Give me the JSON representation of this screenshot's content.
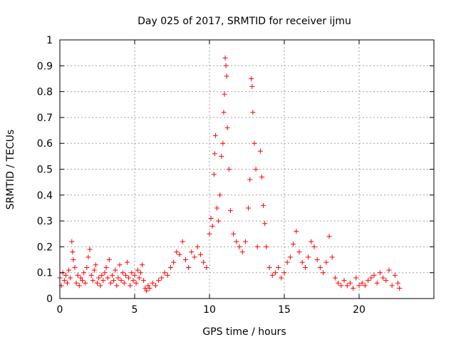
{
  "chart_data": {
    "type": "scatter",
    "title": "Day 025 of 2017, SRMTID for receiver ijmu",
    "xlabel": "GPS time / hours",
    "ylabel": "SRMTID / TECUs",
    "xlim": [
      0,
      25
    ],
    "ylim": [
      0,
      1
    ],
    "xticks": [
      0,
      5,
      10,
      15,
      20
    ],
    "xtick_labels": [
      "0",
      "5",
      "10",
      "15",
      "20"
    ],
    "yticks": [
      0,
      0.1,
      0.2,
      0.3,
      0.4,
      0.5,
      0.6,
      0.7,
      0.8,
      0.9,
      1
    ],
    "ytick_labels": [
      "0",
      "0.1",
      "0.2",
      "0.3",
      "0.4",
      "0.5",
      "0.6",
      "0.7",
      "0.8",
      "0.9",
      "1"
    ],
    "grid": true,
    "marker": "+",
    "color": "#ff0000",
    "series": [
      {
        "name": "SRMTID",
        "points": [
          [
            0.0,
            0.08
          ],
          [
            0.1,
            0.05
          ],
          [
            0.2,
            0.1
          ],
          [
            0.3,
            0.07
          ],
          [
            0.4,
            0.09
          ],
          [
            0.5,
            0.06
          ],
          [
            0.6,
            0.11
          ],
          [
            0.7,
            0.08
          ],
          [
            0.8,
            0.22
          ],
          [
            0.85,
            0.18
          ],
          [
            0.9,
            0.15
          ],
          [
            1.0,
            0.12
          ],
          [
            1.1,
            0.06
          ],
          [
            1.2,
            0.09
          ],
          [
            1.3,
            0.05
          ],
          [
            1.4,
            0.08
          ],
          [
            1.5,
            0.07
          ],
          [
            1.6,
            0.1
          ],
          [
            1.7,
            0.06
          ],
          [
            1.8,
            0.12
          ],
          [
            1.9,
            0.16
          ],
          [
            2.0,
            0.19
          ],
          [
            2.1,
            0.09
          ],
          [
            2.2,
            0.07
          ],
          [
            2.3,
            0.11
          ],
          [
            2.4,
            0.13
          ],
          [
            2.5,
            0.06
          ],
          [
            2.6,
            0.08
          ],
          [
            2.7,
            0.05
          ],
          [
            2.8,
            0.09
          ],
          [
            2.9,
            0.07
          ],
          [
            3.0,
            0.1
          ],
          [
            3.1,
            0.12
          ],
          [
            3.2,
            0.08
          ],
          [
            3.3,
            0.15
          ],
          [
            3.4,
            0.06
          ],
          [
            3.5,
            0.09
          ],
          [
            3.6,
            0.07
          ],
          [
            3.7,
            0.11
          ],
          [
            3.8,
            0.05
          ],
          [
            3.9,
            0.08
          ],
          [
            4.0,
            0.13
          ],
          [
            4.1,
            0.07
          ],
          [
            4.2,
            0.1
          ],
          [
            4.3,
            0.06
          ],
          [
            4.4,
            0.09
          ],
          [
            4.5,
            0.14
          ],
          [
            4.6,
            0.08
          ],
          [
            4.7,
            0.05
          ],
          [
            4.8,
            0.1
          ],
          [
            4.9,
            0.07
          ],
          [
            5.0,
            0.09
          ],
          [
            5.1,
            0.06
          ],
          [
            5.2,
            0.11
          ],
          [
            5.3,
            0.08
          ],
          [
            5.4,
            0.1
          ],
          [
            5.5,
            0.13
          ],
          [
            5.6,
            0.07
          ],
          [
            5.7,
            0.04
          ],
          [
            5.8,
            0.03
          ],
          [
            5.9,
            0.05
          ],
          [
            6.0,
            0.04
          ],
          [
            6.2,
            0.06
          ],
          [
            6.4,
            0.05
          ],
          [
            6.6,
            0.07
          ],
          [
            6.8,
            0.08
          ],
          [
            7.0,
            0.1
          ],
          [
            7.2,
            0.09
          ],
          [
            7.4,
            0.12
          ],
          [
            7.6,
            0.14
          ],
          [
            7.8,
            0.18
          ],
          [
            8.0,
            0.17
          ],
          [
            8.2,
            0.22
          ],
          [
            8.4,
            0.15
          ],
          [
            8.6,
            0.12
          ],
          [
            8.8,
            0.18
          ],
          [
            9.0,
            0.16
          ],
          [
            9.2,
            0.2
          ],
          [
            9.4,
            0.17
          ],
          [
            9.6,
            0.14
          ],
          [
            9.8,
            0.12
          ],
          [
            10.0,
            0.25
          ],
          [
            10.1,
            0.31
          ],
          [
            10.2,
            0.28
          ],
          [
            10.3,
            0.48
          ],
          [
            10.35,
            0.56
          ],
          [
            10.4,
            0.63
          ],
          [
            10.5,
            0.35
          ],
          [
            10.6,
            0.3
          ],
          [
            10.7,
            0.4
          ],
          [
            10.8,
            0.55
          ],
          [
            10.9,
            0.6
          ],
          [
            10.95,
            0.72
          ],
          [
            11.0,
            0.79
          ],
          [
            11.05,
            0.93
          ],
          [
            11.1,
            0.9
          ],
          [
            11.15,
            0.86
          ],
          [
            11.2,
            0.66
          ],
          [
            11.3,
            0.5
          ],
          [
            11.4,
            0.34
          ],
          [
            11.6,
            0.25
          ],
          [
            11.8,
            0.22
          ],
          [
            12.0,
            0.2
          ],
          [
            12.2,
            0.18
          ],
          [
            12.4,
            0.22
          ],
          [
            12.6,
            0.35
          ],
          [
            12.7,
            0.46
          ],
          [
            12.8,
            0.85
          ],
          [
            12.85,
            0.82
          ],
          [
            12.9,
            0.72
          ],
          [
            13.0,
            0.6
          ],
          [
            13.1,
            0.5
          ],
          [
            13.2,
            0.2
          ],
          [
            13.4,
            0.57
          ],
          [
            13.5,
            0.47
          ],
          [
            13.6,
            0.36
          ],
          [
            13.7,
            0.29
          ],
          [
            13.8,
            0.2
          ],
          [
            14.0,
            0.12
          ],
          [
            14.2,
            0.09
          ],
          [
            14.4,
            0.1
          ],
          [
            14.6,
            0.12
          ],
          [
            14.8,
            0.08
          ],
          [
            15.0,
            0.1
          ],
          [
            15.2,
            0.14
          ],
          [
            15.4,
            0.16
          ],
          [
            15.6,
            0.21
          ],
          [
            15.8,
            0.26
          ],
          [
            16.0,
            0.18
          ],
          [
            16.2,
            0.14
          ],
          [
            16.4,
            0.12
          ],
          [
            16.6,
            0.16
          ],
          [
            16.8,
            0.22
          ],
          [
            17.0,
            0.2
          ],
          [
            17.2,
            0.15
          ],
          [
            17.4,
            0.12
          ],
          [
            17.6,
            0.1
          ],
          [
            17.8,
            0.14
          ],
          [
            18.0,
            0.24
          ],
          [
            18.2,
            0.16
          ],
          [
            18.4,
            0.08
          ],
          [
            18.6,
            0.06
          ],
          [
            18.8,
            0.05
          ],
          [
            19.0,
            0.07
          ],
          [
            19.2,
            0.05
          ],
          [
            19.4,
            0.06
          ],
          [
            19.6,
            0.04
          ],
          [
            19.8,
            0.08
          ],
          [
            20.0,
            0.05
          ],
          [
            20.2,
            0.06
          ],
          [
            20.4,
            0.05
          ],
          [
            20.6,
            0.07
          ],
          [
            20.8,
            0.08
          ],
          [
            21.0,
            0.09
          ],
          [
            21.2,
            0.06
          ],
          [
            21.4,
            0.1
          ],
          [
            21.6,
            0.08
          ],
          [
            21.8,
            0.07
          ],
          [
            22.0,
            0.11
          ],
          [
            22.2,
            0.05
          ],
          [
            22.4,
            0.09
          ],
          [
            22.6,
            0.06
          ],
          [
            22.7,
            0.04
          ]
        ]
      }
    ]
  }
}
